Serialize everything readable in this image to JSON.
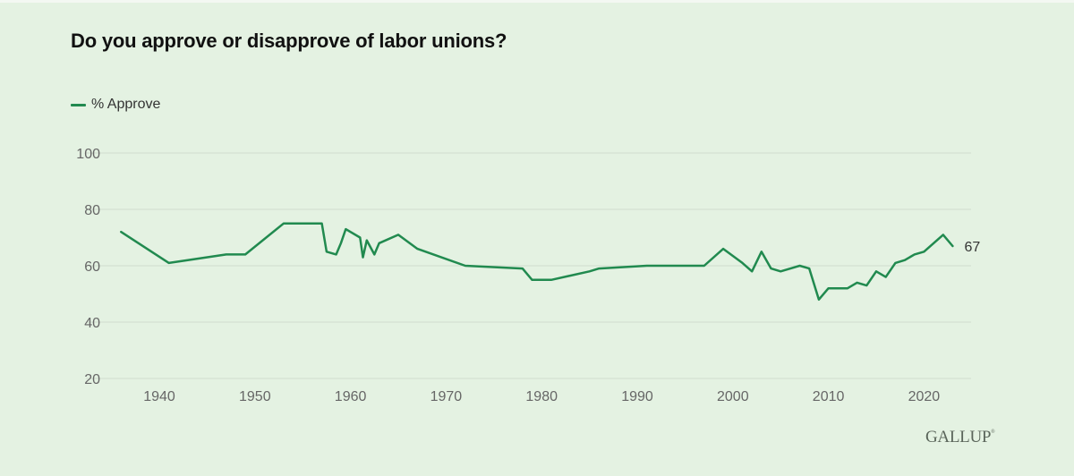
{
  "chart_data": {
    "type": "line",
    "title": "Do you approve or disapprove of labor unions?",
    "xlabel": "",
    "ylabel": "",
    "ylim": [
      20,
      100
    ],
    "xlim": [
      1935,
      2025
    ],
    "yticks": [
      20,
      40,
      60,
      80,
      100
    ],
    "xticks": [
      1940,
      1950,
      1960,
      1970,
      1980,
      1990,
      2000,
      2010,
      2020
    ],
    "grid": "horizontal",
    "legend_position": "top-left",
    "series": [
      {
        "name": "% Approve",
        "color": "#218a4f",
        "end_label": "67",
        "points": [
          [
            1936,
            72
          ],
          [
            1941,
            61
          ],
          [
            1947,
            64
          ],
          [
            1949,
            64
          ],
          [
            1953,
            75
          ],
          [
            1957,
            75
          ],
          [
            1957.5,
            65
          ],
          [
            1958.5,
            64
          ],
          [
            1959,
            68
          ],
          [
            1959.5,
            73
          ],
          [
            1961,
            70
          ],
          [
            1961.3,
            63
          ],
          [
            1961.7,
            69
          ],
          [
            1962.5,
            64
          ],
          [
            1963,
            68
          ],
          [
            1965,
            71
          ],
          [
            1967,
            66
          ],
          [
            1972,
            60
          ],
          [
            1978,
            59
          ],
          [
            1979,
            55
          ],
          [
            1981,
            55
          ],
          [
            1985,
            58
          ],
          [
            1986,
            59
          ],
          [
            1991,
            60
          ],
          [
            1997,
            60
          ],
          [
            1999,
            66
          ],
          [
            2001,
            61
          ],
          [
            2002,
            58
          ],
          [
            2003,
            65
          ],
          [
            2004,
            59
          ],
          [
            2005,
            58
          ],
          [
            2007,
            60
          ],
          [
            2008,
            59
          ],
          [
            2009,
            48
          ],
          [
            2010,
            52
          ],
          [
            2012,
            52
          ],
          [
            2013,
            54
          ],
          [
            2014,
            53
          ],
          [
            2015,
            58
          ],
          [
            2016,
            56
          ],
          [
            2017,
            61
          ],
          [
            2018,
            62
          ],
          [
            2019,
            64
          ],
          [
            2020,
            65
          ],
          [
            2022,
            71
          ],
          [
            2023,
            67
          ]
        ]
      }
    ]
  },
  "header": {
    "title": "Do you approve or disapprove of labor unions?"
  },
  "legend": {
    "items": [
      {
        "label": "% Approve",
        "color": "#218a4f"
      }
    ]
  },
  "footer": {
    "brand": "GALLUP",
    "brand_mark": "®"
  }
}
